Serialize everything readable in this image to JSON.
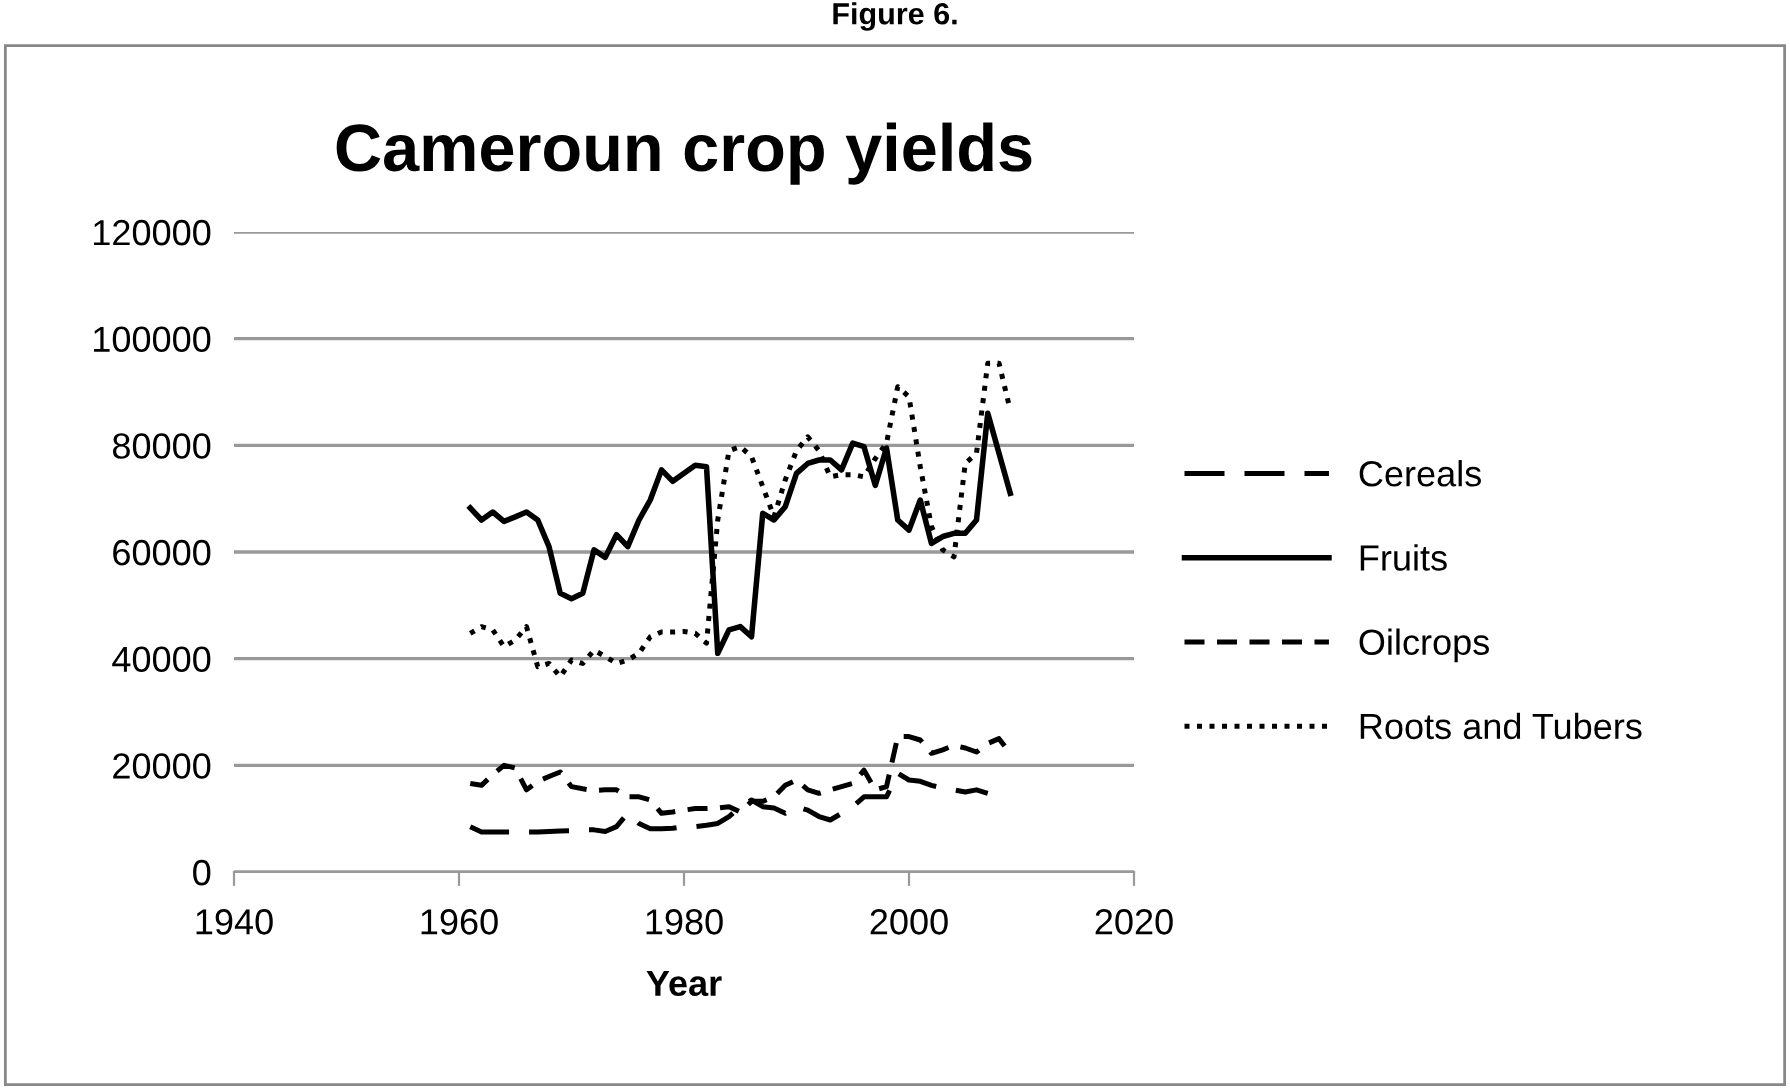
{
  "chart_data": {
    "type": "line",
    "title": "Cameroun crop yields",
    "xlabel": "Year",
    "annotations": [
      "Figure 6."
    ],
    "x": [
      1961,
      1962,
      1963,
      1964,
      1965,
      1966,
      1967,
      1968,
      1969,
      1970,
      1971,
      1972,
      1973,
      1974,
      1975,
      1976,
      1977,
      1978,
      1979,
      1980,
      1981,
      1982,
      1983,
      1984,
      1985,
      1986,
      1987,
      1988,
      1989,
      1990,
      1991,
      1992,
      1993,
      1994,
      1995,
      1996,
      1997,
      1998,
      1999,
      2000,
      2001,
      2002,
      2003,
      2004,
      2005,
      2006,
      2007,
      2008,
      2009
    ],
    "series": [
      {
        "name": "Cereals",
        "color": "#000000",
        "line_style": "dashed",
        "values": [
          8500,
          7500,
          7500,
          7500,
          7500,
          7500,
          7500,
          7600,
          7700,
          7750,
          7900,
          7900,
          7600,
          8500,
          11000,
          9100,
          8100,
          8100,
          8200,
          8500,
          8500,
          8750,
          9100,
          10400,
          12250,
          13500,
          12250,
          12000,
          11000,
          12250,
          11600,
          10400,
          9750,
          11000,
          12250,
          14100,
          14100,
          14100,
          18500,
          17250,
          17000,
          16250,
          15750,
          15400,
          15000,
          15400,
          14750,
          null,
          null
        ]
      },
      {
        "name": "Fruits",
        "color": "#000000",
        "line_style": "solid",
        "values": [
          68250,
          66000,
          67500,
          65750,
          66600,
          67500,
          66000,
          61000,
          52250,
          51250,
          52250,
          60400,
          59000,
          63250,
          61000,
          66000,
          69750,
          75400,
          73250,
          74750,
          76250,
          76000,
          41000,
          45400,
          46000,
          44100,
          67250,
          66000,
          68500,
          74750,
          76600,
          77250,
          77250,
          75400,
          80400,
          79750,
          72500,
          79500,
          66000,
          64100,
          69750,
          61600,
          62900,
          63500,
          63500,
          66000,
          86000,
          78500,
          71000
        ]
      },
      {
        "name": "Oilcrops",
        "color": "#000000",
        "line_style": "dashed",
        "values": [
          16600,
          16250,
          18250,
          20000,
          19500,
          15400,
          17000,
          17900,
          18750,
          16000,
          15600,
          15250,
          15400,
          15400,
          14100,
          14100,
          13500,
          11000,
          11250,
          11600,
          11900,
          11900,
          12000,
          12250,
          11250,
          13250,
          13250,
          14100,
          16250,
          17250,
          15400,
          14750,
          15400,
          16000,
          16600,
          19100,
          15400,
          16000,
          25400,
          25400,
          24750,
          22250,
          22900,
          23750,
          23250,
          22500,
          24100,
          25000,
          22250
        ]
      },
      {
        "name": "Roots and Tubers",
        "color": "#000000",
        "line_style": "dotted",
        "values": [
          44750,
          46000,
          45400,
          42250,
          43500,
          46000,
          38500,
          39100,
          36600,
          39750,
          39100,
          41600,
          40400,
          39100,
          39750,
          41000,
          44100,
          45000,
          45000,
          45100,
          44750,
          42900,
          66000,
          79000,
          79750,
          77900,
          72250,
          66600,
          73500,
          79000,
          81600,
          79000,
          74100,
          74500,
          74500,
          74100,
          77500,
          80400,
          91000,
          89100,
          76000,
          64750,
          60400,
          59100,
          76600,
          78500,
          95400,
          95400,
          86600
        ]
      }
    ],
    "xlim": [
      1940,
      2020
    ],
    "xticks": [
      1940,
      1960,
      1980,
      2000,
      2020
    ],
    "ylim": [
      0,
      120000
    ],
    "yticks": [
      0,
      20000,
      40000,
      60000,
      80000,
      100000,
      120000
    ],
    "grid": "y",
    "legend": "right",
    "marker": "none"
  }
}
